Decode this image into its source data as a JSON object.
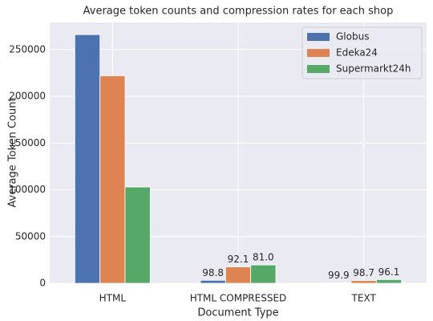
{
  "chart_data": {
    "type": "bar",
    "title": "Average token counts and compression rates for each shop",
    "x_label": "Document Type",
    "y_label": "Average Token Count",
    "categories": [
      "HTML",
      "HTML COMPRESSED",
      "TEXT"
    ],
    "series": [
      {
        "name": "Globus",
        "color": "#4c72b0",
        "values": [
          266000,
          3200,
          270
        ],
        "labels": [
          null,
          "98.8",
          "99.9"
        ]
      },
      {
        "name": "Edeka24",
        "color": "#dd8452",
        "values": [
          222000,
          17500,
          2900
        ],
        "labels": [
          null,
          "92.1",
          "98.7"
        ]
      },
      {
        "name": "Supermarkt24h",
        "color": "#55a868",
        "values": [
          103000,
          19600,
          4000
        ],
        "labels": [
          null,
          "81.0",
          "96.1"
        ]
      }
    ],
    "ylim": [
      0,
      279000
    ],
    "yticks": [
      0,
      50000,
      100000,
      150000,
      200000,
      250000
    ],
    "grid": true,
    "legend": "upper right"
  }
}
